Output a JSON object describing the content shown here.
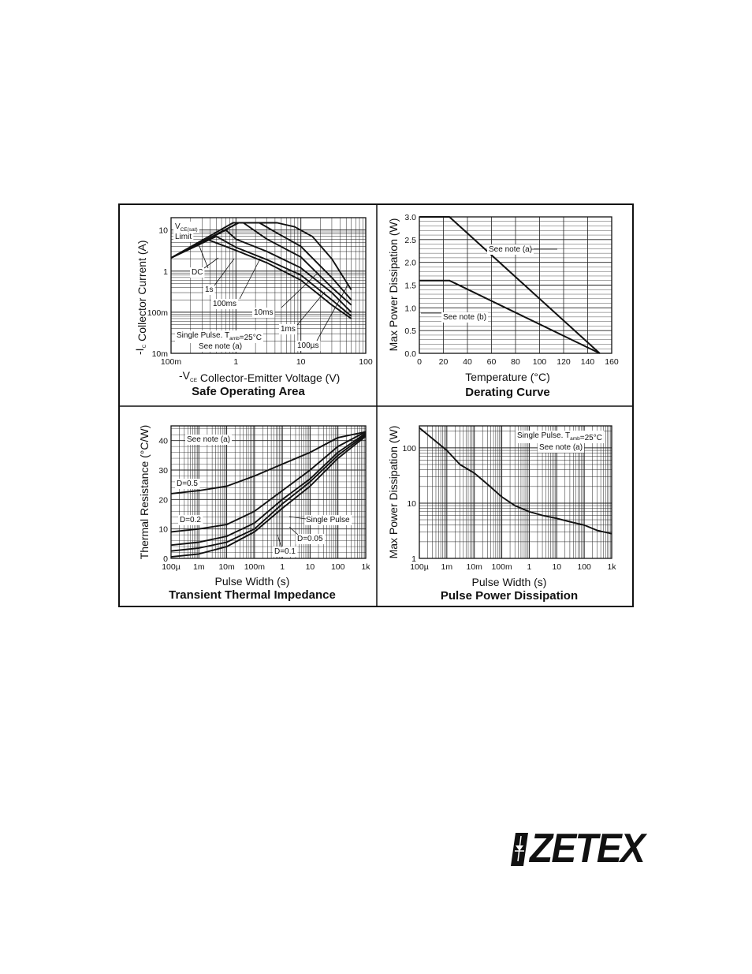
{
  "logo": {
    "text": "ZETEX",
    "icon": "zetex-diode-mark-icon"
  },
  "chart_data": [
    {
      "type": "line",
      "title": "Safe Operating Area",
      "xlabel": "-V_CE Collector-Emitter Voltage (V)",
      "ylabel": "-I_C Collector Current (A)",
      "xscale": "log",
      "yscale": "log",
      "xlim": [
        0.1,
        100
      ],
      "ylim": [
        0.01,
        20
      ],
      "xticks": [
        "100m",
        "1",
        "10",
        "100"
      ],
      "yticks": [
        "10m",
        "100m",
        "1",
        "10"
      ],
      "annotations": [
        "V_CE(sat) Limit",
        "DC",
        "1s",
        "100ms",
        "10ms",
        "1ms",
        "100µs",
        "Single Pulse. T_amb=25°C",
        "See note (a)"
      ],
      "series": [
        {
          "name": "DC",
          "x": [
            0.1,
            0.35,
            1,
            3,
            10,
            30,
            60
          ],
          "y": [
            2.1,
            6,
            3.2,
            1.6,
            0.6,
            0.15,
            0.07
          ]
        },
        {
          "name": "1s",
          "x": [
            0.1,
            0.5,
            1,
            3,
            10,
            30,
            60
          ],
          "y": [
            2.1,
            7,
            3.8,
            1.9,
            0.8,
            0.2,
            0.08
          ]
        },
        {
          "name": "100ms",
          "x": [
            0.1,
            0.7,
            1,
            3,
            10,
            30,
            60
          ],
          "y": [
            2.1,
            10,
            6,
            3,
            1.2,
            0.3,
            0.1
          ]
        },
        {
          "name": "10ms",
          "x": [
            0.1,
            0.9,
            1.3,
            3,
            10,
            30,
            60
          ],
          "y": [
            2.1,
            15,
            15,
            6,
            2.2,
            0.4,
            0.15
          ]
        },
        {
          "name": "1ms",
          "x": [
            0.1,
            1.1,
            2.3,
            4,
            10,
            30,
            60
          ],
          "y": [
            2.1,
            15,
            15,
            9,
            4,
            0.7,
            0.2
          ]
        },
        {
          "name": "100µs",
          "x": [
            0.1,
            1.1,
            4.3,
            8,
            15,
            30,
            60
          ],
          "y": [
            2.1,
            15,
            15,
            12,
            7,
            2,
            0.35
          ]
        }
      ]
    },
    {
      "type": "line",
      "title": "Derating Curve",
      "xlabel": "Temperature (°C)",
      "ylabel": "Max Power Dissipation (W)",
      "xlim": [
        0,
        160
      ],
      "ylim": [
        0,
        3.0
      ],
      "xticks": [
        "0",
        "20",
        "40",
        "60",
        "80",
        "100",
        "120",
        "140",
        "160"
      ],
      "yticks": [
        "0.0",
        "0.5",
        "1.0",
        "1.5",
        "2.0",
        "2.5",
        "3.0"
      ],
      "series": [
        {
          "name": "See note (a)",
          "x": [
            0,
            25,
            150
          ],
          "y": [
            3.0,
            3.0,
            0
          ]
        },
        {
          "name": "See note (b)",
          "x": [
            0,
            25,
            150
          ],
          "y": [
            1.6,
            1.6,
            0
          ]
        }
      ]
    },
    {
      "type": "line",
      "title": "Transient Thermal Impedance",
      "xlabel": "Pulse Width (s)",
      "ylabel": "Thermal Resistance (°C/W)",
      "xscale": "log",
      "xlim": [
        0.0001,
        1000
      ],
      "ylim": [
        0,
        45
      ],
      "xticks": [
        "100µ",
        "1m",
        "10m",
        "100m",
        "1",
        "10",
        "100",
        "1k"
      ],
      "yticks": [
        "0",
        "10",
        "20",
        "30",
        "40"
      ],
      "annotations": [
        "See note (a)"
      ],
      "series": [
        {
          "name": "D=0.5",
          "x": [
            0.0001,
            0.001,
            0.01,
            0.1,
            1,
            10,
            100,
            1000
          ],
          "y": [
            22,
            23,
            24.5,
            28,
            32,
            36,
            41,
            43
          ]
        },
        {
          "name": "D=0.2",
          "x": [
            0.0001,
            0.001,
            0.01,
            0.1,
            1,
            10,
            100,
            1000
          ],
          "y": [
            9,
            10,
            11.5,
            16,
            23,
            30,
            38,
            43
          ]
        },
        {
          "name": "D=0.1",
          "x": [
            0.0001,
            0.001,
            0.01,
            0.1,
            1,
            10,
            100,
            1000
          ],
          "y": [
            4.5,
            5.5,
            7.5,
            12,
            20,
            27,
            36,
            42.5
          ]
        },
        {
          "name": "D=0.05",
          "x": [
            0.0001,
            0.001,
            0.01,
            0.1,
            1,
            10,
            100,
            1000
          ],
          "y": [
            2.5,
            3.5,
            5.5,
            10,
            18.5,
            26,
            35,
            42
          ]
        },
        {
          "name": "Single Pulse",
          "x": [
            0.0001,
            0.001,
            0.01,
            0.1,
            1,
            10,
            100,
            1000
          ],
          "y": [
            0.5,
            1.5,
            4,
            9,
            17,
            24.5,
            34,
            41.5
          ]
        }
      ]
    },
    {
      "type": "line",
      "title": "Pulse Power Dissipation",
      "xlabel": "Pulse Width (s)",
      "ylabel": "Max Power Dissipation (W)",
      "xscale": "log",
      "yscale": "log",
      "xlim": [
        0.0001,
        1000
      ],
      "ylim": [
        1,
        250
      ],
      "xticks": [
        "100µ",
        "1m",
        "10m",
        "100m",
        "1",
        "10",
        "100",
        "1k"
      ],
      "yticks": [
        "1",
        "10",
        "100"
      ],
      "annotations": [
        "Single Pulse. T_amb=25°C",
        "See note (a)"
      ],
      "series": [
        {
          "name": "",
          "x": [
            0.0001,
            0.001,
            0.003,
            0.01,
            0.03,
            0.1,
            0.3,
            1,
            3,
            10,
            30,
            100,
            300,
            1000
          ],
          "y": [
            230,
            90,
            50,
            35,
            22,
            13,
            9,
            7,
            6,
            5.3,
            4.6,
            4,
            3.2,
            2.8
          ]
        }
      ]
    }
  ]
}
